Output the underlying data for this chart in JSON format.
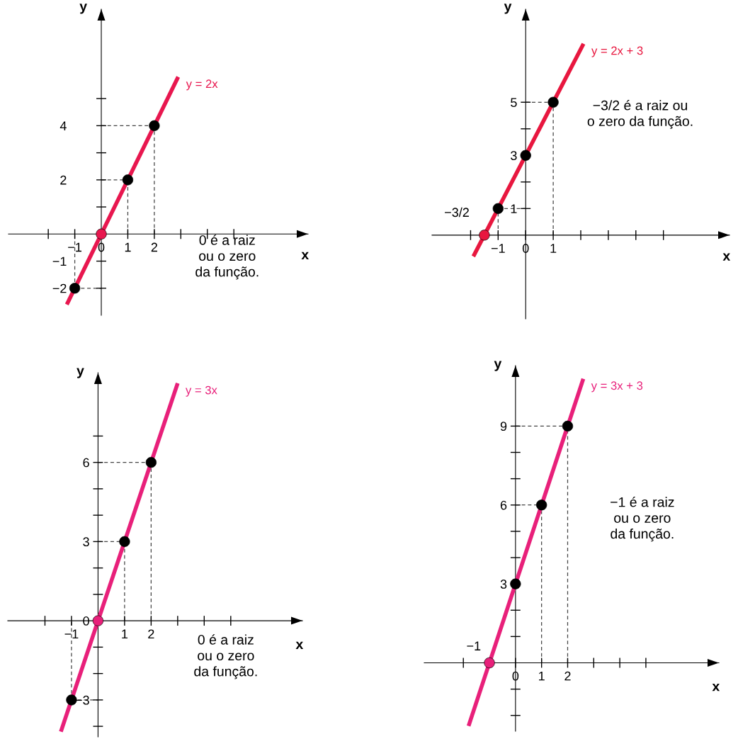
{
  "chart_data": [
    {
      "type": "line",
      "xlabel": "x",
      "ylabel": "y",
      "xlim": [
        -3.5,
        7.8
      ],
      "ylim": [
        -3.0,
        8.3
      ],
      "xticks": [
        {
          "value": -2,
          "label": null
        },
        {
          "value": -1,
          "label": "−1"
        },
        {
          "value": 0,
          "label": "0"
        },
        1,
        2,
        {
          "value": 3,
          "label": null
        },
        {
          "value": 4,
          "label": null
        },
        {
          "value": 5,
          "label": null
        }
      ],
      "yticks": [
        {
          "value": -2,
          "label": "−2"
        },
        {
          "value": -1,
          "label": "−1"
        },
        {
          "value": 1,
          "label": null
        },
        2,
        {
          "value": 3,
          "label": null
        },
        4,
        {
          "value": 5,
          "label": null
        }
      ],
      "series": [
        {
          "type": "line",
          "name": "y = 2x",
          "color": "#e8174f",
          "x": [
            -1.3,
            2.9
          ],
          "values": [
            -2.6,
            5.8
          ],
          "marker": "none"
        },
        {
          "type": "scatter",
          "color": "#000000",
          "colors": [
            "#000000",
            "#e8174f",
            "#000000",
            "#000000"
          ],
          "x": [
            -1,
            0,
            1,
            2
          ],
          "values": [
            -2,
            0,
            2,
            4
          ],
          "marker": "circle",
          "errors": [
            [
              -2,
              0
            ],
            null,
            [
              0,
              2
            ],
            [
              0,
              4
            ]
          ],
          "xerrors": [
            [
              -1,
              0
            ],
            null,
            [
              0,
              1
            ],
            [
              0,
              2
            ]
          ]
        }
      ],
      "annotations": [
        "0 é a raiz\nou o zero\nda função."
      ]
    },
    {
      "type": "line",
      "xlabel": "x",
      "ylabel": "y",
      "xlim": [
        -3.4,
        7.4
      ],
      "ylim": [
        -3.15,
        8.5
      ],
      "xticks": [
        {
          "value": -2,
          "label": null
        },
        {
          "value": -1,
          "label": "−1"
        },
        {
          "value": 0,
          "label": "0"
        },
        1,
        {
          "value": 2,
          "label": null
        },
        {
          "value": 3,
          "label": null
        },
        {
          "value": 4,
          "label": null
        },
        {
          "value": 5,
          "label": null
        }
      ],
      "yticks": [
        1,
        {
          "value": 2,
          "label": null
        },
        3,
        {
          "value": 4,
          "label": null
        },
        5
      ],
      "series": [
        {
          "type": "line",
          "name": "y = 2x + 3",
          "color": "#e8173f",
          "x": [
            -1.9,
            2.1
          ],
          "values": [
            -0.8,
            7.2
          ],
          "marker": "none"
        },
        {
          "type": "scatter",
          "color": "#000000",
          "colors": [
            "#e8173f",
            "#000000",
            "#000000",
            "#000000"
          ],
          "x": [
            -1.5,
            -1,
            0,
            1
          ],
          "values": [
            0,
            1,
            3,
            5
          ],
          "marker": "circle",
          "errors": [
            null,
            [
              0,
              1
            ],
            null,
            [
              0,
              5
            ]
          ],
          "xerrors": [
            null,
            [
              -1,
              0
            ],
            null,
            [
              0,
              1
            ]
          ]
        }
      ],
      "annotations": [
        {
          "text": "−3/2",
          "x": -1.5,
          "y": 0
        },
        "−3/2 é a raiz ou\no zero da função."
      ]
    },
    {
      "type": "line",
      "xlabel": "x",
      "ylabel": "y",
      "xlim": [
        -3.4,
        7.7
      ],
      "ylim": [
        -4.4,
        9.4
      ],
      "xticks": [
        {
          "value": -2,
          "label": null
        },
        {
          "value": -1,
          "label": "−1"
        },
        1,
        2,
        {
          "value": 3,
          "label": null
        },
        {
          "value": 4,
          "label": null
        },
        {
          "value": 5,
          "label": null
        }
      ],
      "yticks": [
        {
          "value": -4,
          "label": null
        },
        {
          "value": -3,
          "label": "−3"
        },
        {
          "value": -2,
          "label": null
        },
        {
          "value": -1,
          "label": null
        },
        {
          "value": 0,
          "label": "0"
        },
        {
          "value": 1,
          "label": null
        },
        {
          "value": 2,
          "label": null
        },
        3,
        {
          "value": 4,
          "label": null
        },
        {
          "value": 5,
          "label": null
        },
        6,
        {
          "value": 7,
          "label": null
        }
      ],
      "series": [
        {
          "type": "line",
          "name": "y = 3x",
          "color": "#e8207a",
          "x": [
            -1.4,
            3.0
          ],
          "values": [
            -4.2,
            9.0
          ],
          "marker": "none"
        },
        {
          "type": "scatter",
          "color": "#000000",
          "colors": [
            "#000000",
            "#e8207a",
            "#000000",
            "#000000"
          ],
          "x": [
            -1,
            0,
            1,
            2
          ],
          "values": [
            -3,
            0,
            3,
            6
          ],
          "marker": "circle",
          "errors": [
            [
              -3,
              0
            ],
            null,
            [
              0,
              3
            ],
            [
              0,
              6
            ]
          ],
          "xerrors": [
            [
              -1,
              0
            ],
            null,
            [
              0,
              1
            ],
            [
              0,
              2
            ]
          ]
        }
      ],
      "annotations": [
        "0 é a raiz\nou o zero\nda função."
      ]
    },
    {
      "type": "line",
      "xlabel": "x",
      "ylabel": "y",
      "xlim": [
        -3.5,
        7.8
      ],
      "ylim": [
        -2.6,
        11.3
      ],
      "xticks": [
        {
          "value": -2,
          "label": null
        },
        {
          "value": -1,
          "label": null
        },
        {
          "value": 0,
          "label": "0"
        },
        1,
        2,
        {
          "value": 3,
          "label": null
        },
        {
          "value": 4,
          "label": null
        },
        {
          "value": 5,
          "label": null
        }
      ],
      "yticks": [
        {
          "value": -2,
          "label": null
        },
        {
          "value": -1,
          "label": null
        },
        {
          "value": 1,
          "label": null
        },
        {
          "value": 2,
          "label": null
        },
        3,
        {
          "value": 4,
          "label": null
        },
        {
          "value": 5,
          "label": null
        },
        6,
        {
          "value": 7,
          "label": null
        },
        {
          "value": 8,
          "label": null
        },
        9
      ],
      "series": [
        {
          "type": "line",
          "name": "y = 3x + 3",
          "color": "#e8207a",
          "x": [
            -1.8,
            2.6
          ],
          "values": [
            -2.4,
            10.8
          ],
          "marker": "none"
        },
        {
          "type": "scatter",
          "color": "#000000",
          "colors": [
            "#e8207a",
            "#000000",
            "#000000",
            "#000000"
          ],
          "x": [
            -1,
            0,
            1,
            2
          ],
          "values": [
            0,
            3,
            6,
            9
          ],
          "marker": "circle",
          "errors": [
            null,
            null,
            [
              0,
              6
            ],
            [
              0,
              9
            ]
          ],
          "xerrors": [
            null,
            null,
            [
              0,
              1
            ],
            [
              0,
              2
            ]
          ]
        }
      ],
      "annotations": [
        {
          "text": "−1",
          "x": -1,
          "y": 0
        },
        "−1 é a raiz\nou o zero\nda função."
      ]
    }
  ]
}
